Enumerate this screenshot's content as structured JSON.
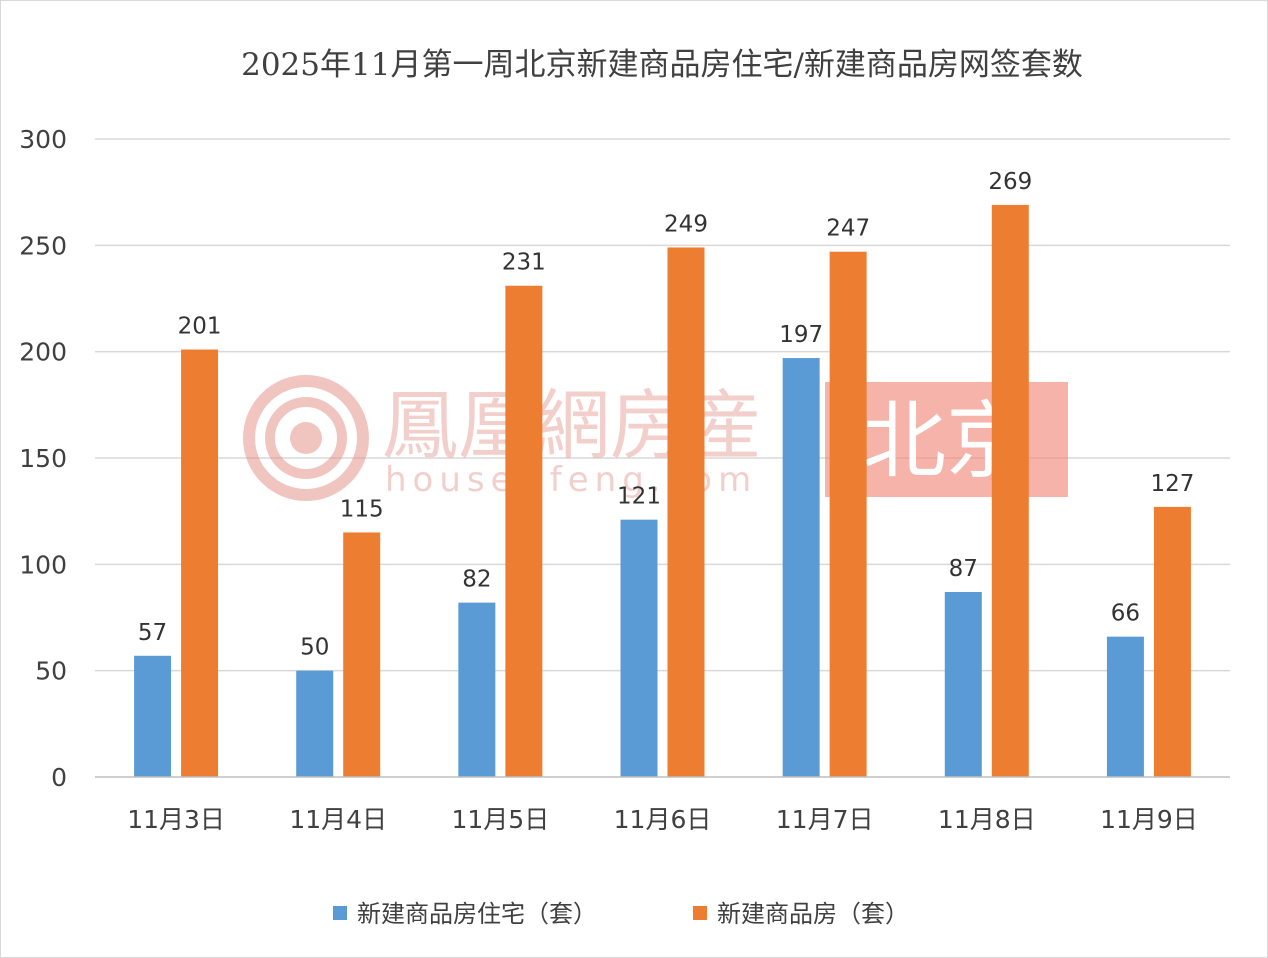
{
  "chart_data": {
    "type": "bar",
    "title": "2025年11月第一周北京新建商品房住宅/新建商品房网签套数",
    "categories": [
      "11月3日",
      "11月4日",
      "11月5日",
      "11月6日",
      "11月7日",
      "11月8日",
      "11月9日"
    ],
    "series": [
      {
        "name": "新建商品房住宅（套）",
        "color": "#5b9bd5",
        "values": [
          57,
          50,
          82,
          121,
          197,
          87,
          66
        ]
      },
      {
        "name": "新建商品房（套）",
        "color": "#ed7d31",
        "values": [
          201,
          115,
          231,
          249,
          247,
          269,
          127
        ]
      }
    ],
    "ylim": [
      0,
      300
    ],
    "yticks": [
      0,
      50,
      100,
      150,
      200,
      250,
      300
    ],
    "grid": true,
    "legend_position": "bottom",
    "data_labels": true
  },
  "watermark": {
    "brand": "鳳凰網房産",
    "url": "house.ifeng.com",
    "city": "北京",
    "logo_icon": "ifeng-phoenix-logo",
    "city_bg_color": "#f08070"
  }
}
